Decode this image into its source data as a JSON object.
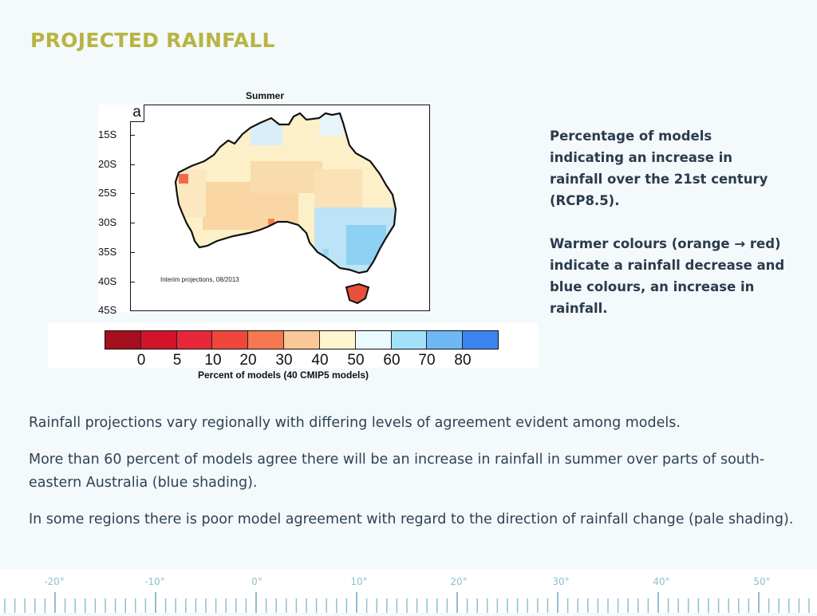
{
  "slide": {
    "title": "PROJECTED RAINFALL"
  },
  "figure": {
    "title": "Summer",
    "panel_label": "a",
    "latitude_labels": [
      "15S",
      "20S",
      "25S",
      "30S",
      "35S",
      "40S",
      "45S"
    ],
    "note": "Interim projections, 08/2013",
    "legend": {
      "tick_labels": [
        "0",
        "5",
        "10",
        "20",
        "30",
        "40",
        "50",
        "60",
        "70",
        "80"
      ],
      "colors": [
        "#a50f1e",
        "#d2142a",
        "#e6283a",
        "#f0463c",
        "#f57850",
        "#fac896",
        "#fff5cf",
        "#ebfaff",
        "#a3e1fa",
        "#6eb9f5",
        "#3c82f0"
      ],
      "caption": "Percent of models (40 CMIP5 models)"
    }
  },
  "side_text": {
    "paragraph_1": "Percentage of models indicating an increase in rainfall over the 21st century (RCP8.5).",
    "paragraph_2": "Warmer colours (orange → red) indicate a rainfall decrease and blue colours, an increase in rainfall."
  },
  "body": {
    "paragraph_1": "Rainfall projections vary regionally with differing levels of agreement evident among models.",
    "paragraph_2": "More than 60 percent of models agree there will be an increase in rainfall  in summer over parts of south-eastern Australia (blue shading).",
    "paragraph_3": "In some regions there is poor model agreement with regard to the direction of rainfall change (pale shading)."
  },
  "ruler": {
    "labels": [
      "-20°",
      "-10°",
      "0°",
      "10°",
      "20°",
      "30°",
      "40°",
      "50°"
    ]
  }
}
